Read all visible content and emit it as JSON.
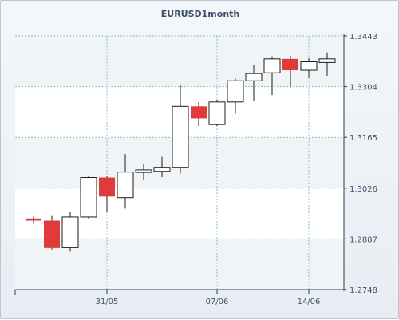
{
  "chart_data": {
    "type": "candlestick",
    "title": "EURUSD1month",
    "ylim": [
      1.2748,
      1.3443
    ],
    "y_ticks": [
      "1.3443",
      "1.3304",
      "1.3165",
      "1.3026",
      "1.2887",
      "1.2748"
    ],
    "y_tick_values": [
      1.3443,
      1.3304,
      1.3165,
      1.3026,
      1.2887,
      1.2748
    ],
    "x_ticks": [
      "31/05",
      "07/06",
      "14/06"
    ],
    "x_tick_candle_index": [
      4,
      10,
      15
    ],
    "grid": true,
    "colors": {
      "up": "#ffffff",
      "down": "#e03a3a",
      "outline": "#1b1b1b",
      "grid": "#7fc3c9"
    },
    "candles": [
      {
        "open": 1.2943,
        "high": 1.2948,
        "low": 1.2928,
        "close": 1.2937
      },
      {
        "open": 1.2937,
        "high": 1.295,
        "low": 1.2858,
        "close": 1.2862
      },
      {
        "open": 1.2863,
        "high": 1.296,
        "low": 1.2852,
        "close": 1.2947
      },
      {
        "open": 1.2947,
        "high": 1.306,
        "low": 1.2942,
        "close": 1.3055
      },
      {
        "open": 1.3055,
        "high": 1.3058,
        "low": 1.296,
        "close": 1.3003
      },
      {
        "open": 1.3,
        "high": 1.3119,
        "low": 1.297,
        "close": 1.307
      },
      {
        "open": 1.3069,
        "high": 1.3093,
        "low": 1.3048,
        "close": 1.3076
      },
      {
        "open": 1.3072,
        "high": 1.3112,
        "low": 1.3056,
        "close": 1.3083
      },
      {
        "open": 1.3083,
        "high": 1.331,
        "low": 1.3066,
        "close": 1.325
      },
      {
        "open": 1.325,
        "high": 1.3262,
        "low": 1.3196,
        "close": 1.3217
      },
      {
        "open": 1.32,
        "high": 1.3269,
        "low": 1.3196,
        "close": 1.3262
      },
      {
        "open": 1.3262,
        "high": 1.3326,
        "low": 1.323,
        "close": 1.332
      },
      {
        "open": 1.332,
        "high": 1.3362,
        "low": 1.3266,
        "close": 1.334
      },
      {
        "open": 1.3342,
        "high": 1.3387,
        "low": 1.3281,
        "close": 1.338
      },
      {
        "open": 1.338,
        "high": 1.3388,
        "low": 1.3302,
        "close": 1.3349
      },
      {
        "open": 1.3349,
        "high": 1.3382,
        "low": 1.3328,
        "close": 1.3372
      },
      {
        "open": 1.337,
        "high": 1.3398,
        "low": 1.3334,
        "close": 1.338
      }
    ]
  }
}
